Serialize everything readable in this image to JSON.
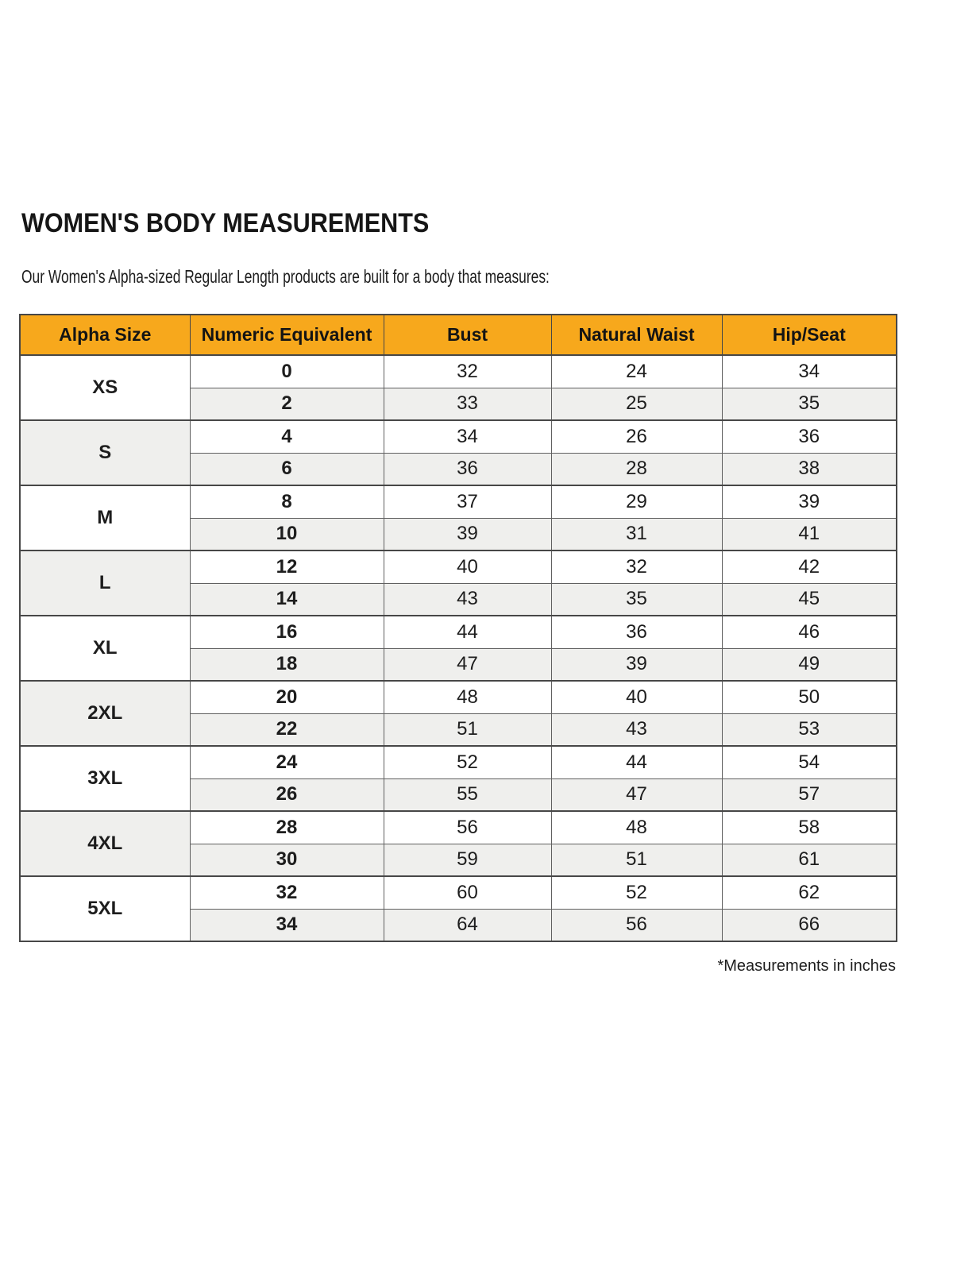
{
  "page": {
    "title": "WOMEN'S BODY MEASUREMENTS",
    "subtitle": "Our Women's Alpha-sized Regular Length products are built for a body that measures:",
    "footnote": "*Measurements in inches"
  },
  "colors": {
    "header_bg": "#F7A81C",
    "alt_row_bg": "#EFEFED",
    "border": "#474747",
    "text": "#1D1D1D"
  },
  "chart_data": {
    "type": "table",
    "title": "WOMEN'S BODY MEASUREMENTS",
    "columns": [
      "Alpha Size",
      "Numeric Equivalent",
      "Bust",
      "Natural Waist",
      "Hip/Seat"
    ],
    "units": "inches",
    "groups": [
      {
        "alpha": "XS",
        "rows": [
          {
            "numeric": "0",
            "bust": "32",
            "waist": "24",
            "hip": "34"
          },
          {
            "numeric": "2",
            "bust": "33",
            "waist": "25",
            "hip": "35"
          }
        ]
      },
      {
        "alpha": "S",
        "rows": [
          {
            "numeric": "4",
            "bust": "34",
            "waist": "26",
            "hip": "36"
          },
          {
            "numeric": "6",
            "bust": "36",
            "waist": "28",
            "hip": "38"
          }
        ]
      },
      {
        "alpha": "M",
        "rows": [
          {
            "numeric": "8",
            "bust": "37",
            "waist": "29",
            "hip": "39"
          },
          {
            "numeric": "10",
            "bust": "39",
            "waist": "31",
            "hip": "41"
          }
        ]
      },
      {
        "alpha": "L",
        "rows": [
          {
            "numeric": "12",
            "bust": "40",
            "waist": "32",
            "hip": "42"
          },
          {
            "numeric": "14",
            "bust": "43",
            "waist": "35",
            "hip": "45"
          }
        ]
      },
      {
        "alpha": "XL",
        "rows": [
          {
            "numeric": "16",
            "bust": "44",
            "waist": "36",
            "hip": "46"
          },
          {
            "numeric": "18",
            "bust": "47",
            "waist": "39",
            "hip": "49"
          }
        ]
      },
      {
        "alpha": "2XL",
        "rows": [
          {
            "numeric": "20",
            "bust": "48",
            "waist": "40",
            "hip": "50"
          },
          {
            "numeric": "22",
            "bust": "51",
            "waist": "43",
            "hip": "53"
          }
        ]
      },
      {
        "alpha": "3XL",
        "rows": [
          {
            "numeric": "24",
            "bust": "52",
            "waist": "44",
            "hip": "54"
          },
          {
            "numeric": "26",
            "bust": "55",
            "waist": "47",
            "hip": "57"
          }
        ]
      },
      {
        "alpha": "4XL",
        "rows": [
          {
            "numeric": "28",
            "bust": "56",
            "waist": "48",
            "hip": "58"
          },
          {
            "numeric": "30",
            "bust": "59",
            "waist": "51",
            "hip": "61"
          }
        ]
      },
      {
        "alpha": "5XL",
        "rows": [
          {
            "numeric": "32",
            "bust": "60",
            "waist": "52",
            "hip": "62"
          },
          {
            "numeric": "34",
            "bust": "64",
            "waist": "56",
            "hip": "66"
          }
        ]
      }
    ]
  }
}
